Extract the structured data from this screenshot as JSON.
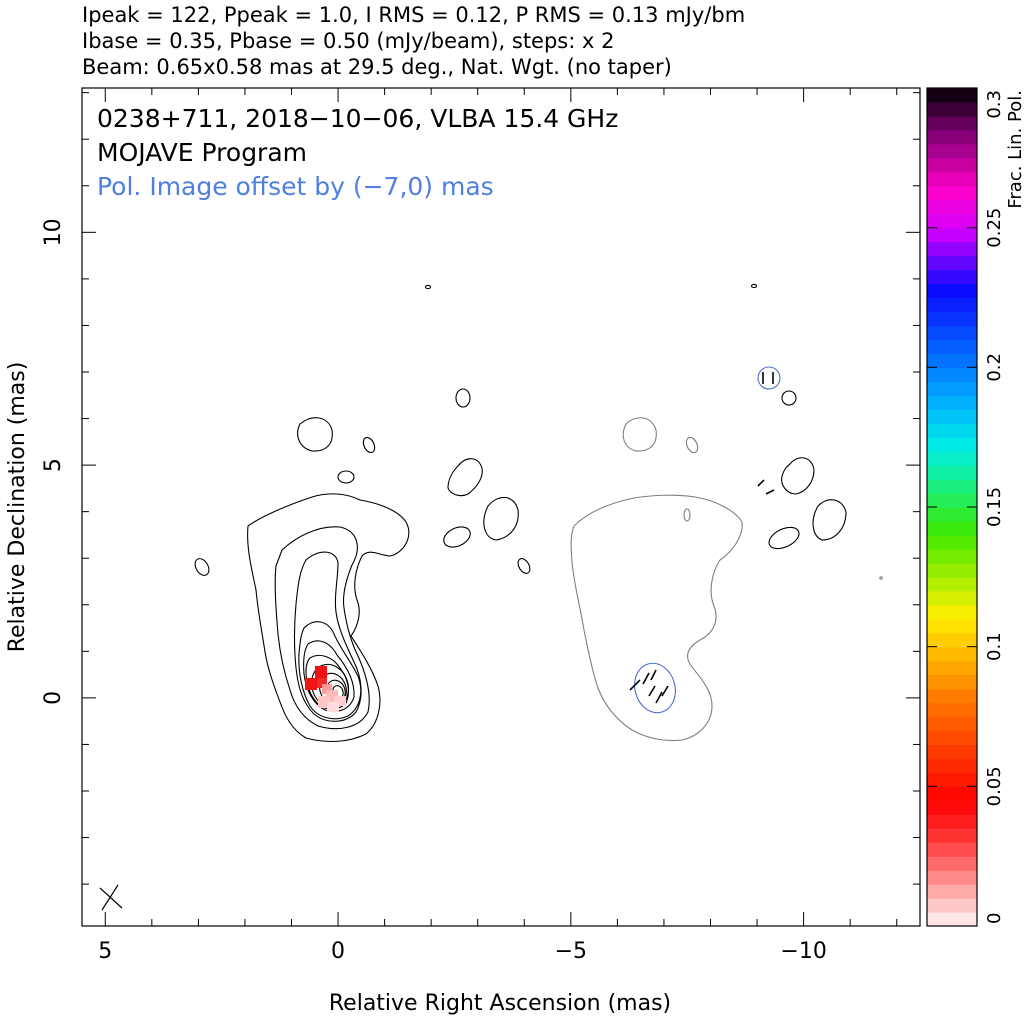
{
  "header": {
    "line1": "Ipeak = 122, Ppeak = 1.0, I RMS = 0.12, P RMS = 0.13 mJy/bm",
    "line2": "Ibase = 0.35, Pbase = 0.50 (mJy/beam), steps: x 2",
    "line3": "Beam: 0.65x0.58 mas at 29.5 deg., Nat. Wgt. (no taper)"
  },
  "plot": {
    "title_line1": "0238+711, 2018−10−06, VLBA 15.4 GHz",
    "title_line2": "MOJAVE Program",
    "title_line3": "Pol. Image offset by (−7,0) mas",
    "title_line3_color": "#4f7fe0"
  },
  "chart_data": {
    "type": "contour",
    "xlabel": "Relative Right Ascension (mas)",
    "ylabel": "Relative Declination (mas)",
    "xlim": [
      5.5,
      -12.5
    ],
    "ylim": [
      -4.9,
      13.1
    ],
    "x_ticks": [
      {
        "value": 5,
        "label": "5"
      },
      {
        "value": 0,
        "label": "0"
      },
      {
        "value": -5,
        "label": "−5"
      },
      {
        "value": -10,
        "label": "−10"
      }
    ],
    "y_ticks": [
      {
        "value": 0,
        "label": "0"
      },
      {
        "value": 5,
        "label": "5"
      },
      {
        "value": 10,
        "label": "10"
      }
    ],
    "core": {
      "x": 0,
      "y": 0
    },
    "stokes_i_peak_mjy_per_beam": 122,
    "contour_base_mjy_per_beam": 0.35,
    "contour_step_factor": 2,
    "polarization_image_offset_mas": [
      -7,
      0
    ],
    "colorbar": {
      "label": "Frac. Lin. Pol.",
      "range": [
        0,
        0.3
      ],
      "ticks": [
        {
          "value": 0,
          "label": "0"
        },
        {
          "value": 0.05,
          "label": "0.05"
        },
        {
          "value": 0.1,
          "label": "0.1"
        },
        {
          "value": 0.15,
          "label": "0.15"
        },
        {
          "value": 0.2,
          "label": "0.2"
        },
        {
          "value": 0.25,
          "label": "0.25"
        },
        {
          "value": 0.3,
          "label": "0.3"
        }
      ]
    }
  }
}
